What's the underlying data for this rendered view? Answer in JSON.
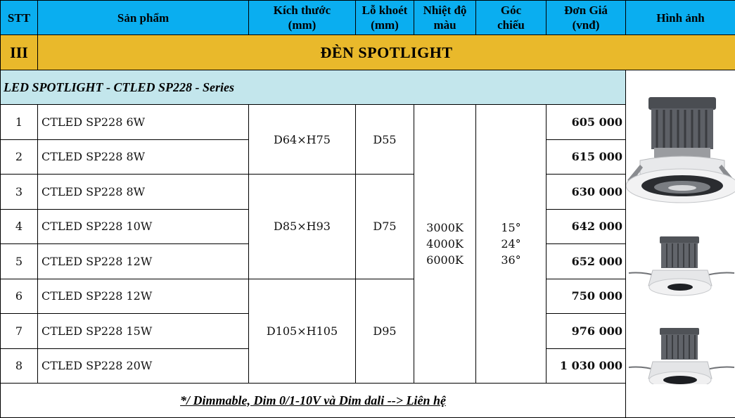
{
  "header": {
    "stt": "STT",
    "product": "Sản phẩm",
    "size": [
      "Kích thước",
      "(mm)"
    ],
    "cutout": [
      "Lỗ khoét",
      "(mm)"
    ],
    "color_temp": [
      "Nhiệt độ",
      "màu"
    ],
    "beam_angle": [
      "Góc",
      "chiếu"
    ],
    "price": [
      "Đơn Giá",
      "(vnđ)"
    ],
    "image": "Hình ảnh"
  },
  "section": {
    "number": "III",
    "title": "ĐÈN SPOTLIGHT"
  },
  "series_label": "LED SPOTLIGHT - CTLED SP228 - Series",
  "shared": {
    "color_temps": [
      "3000K",
      "4000K",
      "6000K"
    ],
    "beam_angles": [
      "15°",
      "24°",
      "36°"
    ]
  },
  "groups": [
    {
      "size": "D64×H75",
      "cutout": "D55"
    },
    {
      "size": "D85×H93",
      "cutout": "D75"
    },
    {
      "size": "D105×H105",
      "cutout": "D95"
    }
  ],
  "rows": [
    {
      "stt": "1",
      "product": "CTLED SP228  6W",
      "price": "605 000"
    },
    {
      "stt": "2",
      "product": "CTLED SP228  8W",
      "price": "615 000"
    },
    {
      "stt": "3",
      "product": "CTLED SP228  8W",
      "price": "630 000"
    },
    {
      "stt": "4",
      "product": "CTLED SP228  10W",
      "price": "642 000"
    },
    {
      "stt": "5",
      "product": "CTLED SP228  12W",
      "price": "652 000"
    },
    {
      "stt": "6",
      "product": "CTLED SP228  12W",
      "price": "750 000"
    },
    {
      "stt": "7",
      "product": "CTLED SP228  15W",
      "price": "976 000"
    },
    {
      "stt": "8",
      "product": "CTLED SP228  20W",
      "price": "1 030 000"
    }
  ],
  "footnote": "*/ Dimmable, Dim 0/1-10V và Dim dali --> Liên hệ",
  "colors": {
    "header_bg": "#0aaef0",
    "section_bg": "#e9b92b",
    "series_bg": "#c3e6ec"
  },
  "images": [
    "spotlight-lamp-icon",
    "spotlight-lamp-icon",
    "spotlight-lamp-icon"
  ]
}
